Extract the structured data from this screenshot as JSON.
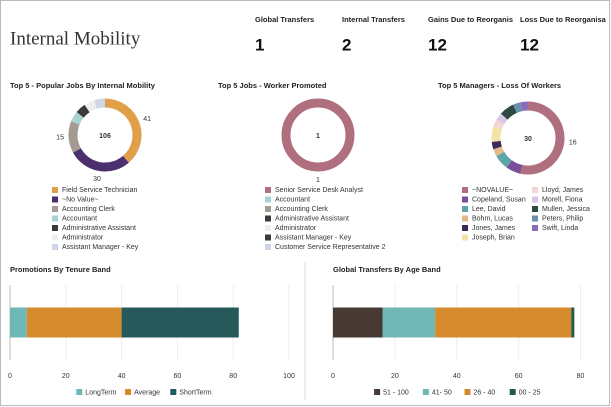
{
  "header": {
    "title": "Internal Mobility"
  },
  "kpis": [
    {
      "label": "Global Transfers",
      "value": 1
    },
    {
      "label": "Internal Transfers",
      "value": 2
    },
    {
      "label": "Gains Due to Reorganis",
      "value": 12
    },
    {
      "label": "Loss Due to Reorganisa",
      "value": 12
    }
  ],
  "chart_data": [
    {
      "type": "donut",
      "title": "Top 5 - Popular Jobs By Internal Mobility",
      "total": 106,
      "categories": [
        "Field Service Technician",
        "~No Value~",
        "Accounting Clerk",
        "Accountant",
        "Administrative Assistant",
        "Administrator",
        "Assistant Manager - Key"
      ],
      "values": [
        41,
        30,
        15,
        5,
        5,
        5,
        5
      ],
      "colors": [
        "#e0a04a",
        "#4b2f6e",
        "#a39a92",
        "#a9d3d3",
        "#3a3a3a",
        "#eeeeee",
        "#cdd6e6"
      ]
    },
    {
      "type": "donut",
      "title": "Top 5 Jobs - Worker Promoted",
      "total": 1,
      "categories": [
        "Senior Service Desk Analyst",
        "Accountant",
        "Accounting Clerk",
        "Administrative Assistant",
        "Administrator",
        "Assistant Manager - Key",
        "Customer Service Representative 2"
      ],
      "values": [
        1,
        0,
        0,
        0,
        0,
        0,
        0
      ],
      "colors": [
        "#b06f7e",
        "#a9d3d3",
        "#a39a92",
        "#3a3a3a",
        "#eeeeee",
        "#3a3a3a",
        "#cdd6e6"
      ]
    },
    {
      "type": "donut",
      "title": "Top 5 Managers - Loss Of Workers",
      "total": 30,
      "categories": [
        "~NOVALUE~",
        "Copeland, Susan",
        "Lee, David",
        "Bohm, Lucas",
        "Jones, James",
        "Joseph, Brian",
        "Lloyd, James",
        "Morell, Fiona",
        "Mullen, Jessica",
        "Peters, Philip",
        "Swift, Linda"
      ],
      "values": [
        16,
        2,
        2,
        1,
        1,
        2,
        1,
        1,
        2,
        1,
        1
      ],
      "colors": [
        "#b06f7e",
        "#7a4f9a",
        "#5aa6a8",
        "#e6b98a",
        "#3d2a5c",
        "#f3e3a6",
        "#f5d6d6",
        "#d9c6e6",
        "#2d4a40",
        "#6b8fb0",
        "#8a6cb8"
      ]
    },
    {
      "type": "bar",
      "title": "Promotions By Tenure Band",
      "orientation": "horizontal",
      "stacked": true,
      "categories": [
        null
      ],
      "series": [
        {
          "name": "LongTerm",
          "color": "#6fb7b7",
          "values": [
            6
          ]
        },
        {
          "name": "Average",
          "color": "#d68a2e",
          "values": [
            34
          ]
        },
        {
          "name": "ShortTerm",
          "color": "#265a5a",
          "values": [
            42
          ]
        }
      ],
      "xlim": [
        0,
        100
      ],
      "xticks": [
        0,
        20,
        40,
        60,
        80,
        100
      ],
      "grid": true
    },
    {
      "type": "bar",
      "title": "Global Transfers By Age Band",
      "orientation": "horizontal",
      "stacked": true,
      "categories": [
        null
      ],
      "series": [
        {
          "name": "51 - 100",
          "color": "#473a33",
          "values": [
            16
          ]
        },
        {
          "name": "41- 50",
          "color": "#6fb7b7",
          "values": [
            17
          ]
        },
        {
          "name": "26 - 40",
          "color": "#d68a2e",
          "values": [
            44
          ]
        },
        {
          "name": "00 - 25",
          "color": "#265a45",
          "values": [
            1
          ]
        }
      ],
      "xlim": [
        0,
        85
      ],
      "xticks": [
        0,
        20,
        40,
        60,
        80
      ],
      "grid": true
    }
  ]
}
